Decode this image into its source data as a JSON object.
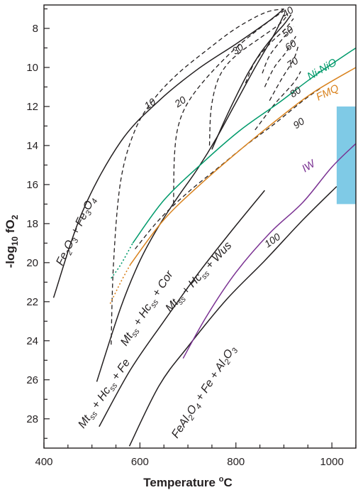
{
  "chart_data": {
    "type": "line",
    "xlabel_main": "Temperature ",
    "xlabel_sup": "o",
    "xlabel_tail": "C",
    "ylabel_pre": "-log",
    "ylabel_sub1": "10",
    "ylabel_mid": " fO",
    "ylabel_sub2": "2",
    "xlim": [
      400,
      1050
    ],
    "ylim": [
      29.5,
      6.8
    ],
    "x_ticks": [
      "400",
      "600",
      "800",
      "1000"
    ],
    "x_tick_values": [
      400,
      600,
      800,
      1000
    ],
    "y_ticks": [
      "8",
      "10",
      "12",
      "14",
      "16",
      "18",
      "20",
      "22",
      "24",
      "26",
      "28"
    ],
    "y_tick_values": [
      8,
      10,
      12,
      14,
      16,
      18,
      20,
      22,
      24,
      26,
      28
    ],
    "colors": {
      "ink": "#231f20",
      "nnoColor": "#009a6b",
      "fmqColor": "#d9821d",
      "iwColor": "#7a3192",
      "boxColor": "#7fcae6"
    },
    "labels": {
      "fe2o3": [
        "Fe",
        "2",
        "O",
        "3",
        " + Fe",
        "3",
        "O",
        "4"
      ],
      "mtHcFe": [
        "Mt",
        "ss",
        " + Hc",
        "ss",
        " + Fe"
      ],
      "mtHcCor": [
        "Mt",
        "ss",
        " + Hc",
        "ss",
        " + Cor"
      ],
      "mtHcWus": [
        "Mt",
        "ss",
        " + Hc",
        "ss",
        " + Wus"
      ],
      "feal": [
        "FeAl",
        "2",
        "O",
        "4",
        " + Fe + Al",
        "2",
        "O",
        "3"
      ],
      "nno": "Ni-NiO",
      "fmq": "FMQ",
      "iw": "IW"
    },
    "solid_series": [
      {
        "key": "fe2o3",
        "color": "ink",
        "x": [
          420,
          480,
          560,
          640,
          720,
          800,
          870,
          900
        ],
        "y": [
          21.8,
          17.4,
          13.8,
          11.7,
          10.1,
          8.8,
          7.6,
          7.0
        ]
      },
      {
        "key": "mtHcFe",
        "color": "ink",
        "x": [
          515,
          580,
          650,
          720,
          790,
          860
        ],
        "y": [
          28.4,
          25.5,
          23.0,
          20.6,
          18.4,
          16.3
        ]
      },
      {
        "key": "mtHcCor",
        "color": "ink",
        "x": [
          510,
          560,
          600,
          640,
          680,
          720,
          760,
          800,
          840,
          880,
          900
        ],
        "y": [
          26.1,
          22.3,
          19.9,
          18.1,
          16.6,
          15.2,
          13.6,
          11.8,
          10.0,
          8.3,
          7.3
        ]
      },
      {
        "key": "mtHcWus",
        "color": "ink",
        "x": [
          750,
          775,
          800,
          825,
          850,
          875,
          900,
          915
        ],
        "y": [
          14.2,
          12.8,
          11.5,
          10.3,
          9.3,
          8.5,
          7.8,
          7.3
        ]
      },
      {
        "key": "feal",
        "color": "ink",
        "x": [
          578,
          640,
          700,
          780,
          860,
          940,
          1010
        ],
        "y": [
          29.4,
          26.3,
          24.3,
          21.9,
          19.9,
          17.8,
          16.1
        ]
      },
      {
        "key": "nno",
        "color": "nnoColor",
        "x": [
          585,
          650,
          730,
          810,
          890,
          960,
          1050
        ],
        "y": [
          19.0,
          16.8,
          14.9,
          13.2,
          11.8,
          10.5,
          9.0
        ]
      },
      {
        "key": "fmq",
        "color": "fmqColor",
        "x": [
          580,
          650,
          730,
          810,
          890,
          960,
          1050
        ],
        "y": [
          20.1,
          17.8,
          15.9,
          14.2,
          12.6,
          11.3,
          10.0
        ]
      },
      {
        "key": "iw",
        "color": "iwColor",
        "x": [
          690,
          740,
          800,
          870,
          940,
          1000,
          1050
        ],
        "y": [
          24.9,
          22.7,
          20.5,
          18.5,
          16.9,
          15.1,
          13.9
        ]
      }
    ],
    "dotted_series": [
      {
        "key": "nno-extrapolated",
        "color": "nnoColor",
        "x": [
          540,
          560,
          585
        ],
        "y": [
          20.8,
          20.1,
          19.0
        ]
      },
      {
        "key": "fmq-extrapolated",
        "color": "fmqColor",
        "x": [
          538,
          560,
          580
        ],
        "y": [
          22.1,
          21.0,
          20.1
        ]
      }
    ],
    "contours": [
      {
        "label": "10",
        "x": [
          540,
          545,
          560,
          590,
          630,
          680,
          740,
          800,
          860,
          900
        ],
        "y": [
          24.2,
          20.0,
          15.8,
          13.2,
          11.6,
          10.3,
          9.1,
          8.0,
          7.2,
          7.0
        ]
      },
      {
        "label": "20",
        "x": [
          670,
          672,
          680,
          700,
          740,
          800,
          860,
          900
        ],
        "y": [
          17.0,
          14.5,
          13.0,
          11.8,
          10.5,
          9.0,
          7.8,
          7.1
        ]
      },
      {
        "label": "30",
        "x": [
          745,
          748,
          760,
          780,
          810,
          850,
          890,
          905
        ],
        "y": [
          14.0,
          12.2,
          10.8,
          9.9,
          9.2,
          8.5,
          7.8,
          7.4
        ]
      },
      {
        "label": "40",
        "x": [
          820,
          840,
          870,
          900,
          920
        ],
        "y": [
          10.8,
          9.7,
          8.8,
          8.1,
          7.5
        ]
      },
      {
        "label": "50",
        "x": [
          855,
          870,
          895,
          920
        ],
        "y": [
          10.3,
          9.4,
          8.6,
          7.9
        ]
      },
      {
        "label": "60",
        "x": [
          860,
          880,
          905,
          925
        ],
        "y": [
          11.0,
          10.0,
          9.2,
          8.4
        ]
      },
      {
        "label": "70",
        "x": [
          870,
          895,
          920,
          930
        ],
        "y": [
          11.7,
          10.6,
          9.6,
          8.9
        ]
      },
      {
        "label": "80",
        "x": [
          840,
          880,
          920,
          935
        ],
        "y": [
          13.2,
          11.9,
          10.8,
          10.2
        ]
      },
      {
        "label": "90",
        "x": [
          590,
          640,
          700,
          760,
          820,
          880,
          940,
          980
        ],
        "y": [
          19.3,
          17.8,
          16.4,
          15.2,
          14.0,
          12.9,
          11.7,
          11.0
        ]
      }
    ],
    "contour_label_positions": [
      {
        "label": "10",
        "x": 625,
        "y": 12.0
      },
      {
        "label": "20",
        "x": 688,
        "y": 11.9
      },
      {
        "label": "30",
        "x": 808,
        "y": 9.2
      },
      {
        "label": "40",
        "x": 912,
        "y": 7.3
      },
      {
        "label": "50",
        "x": 912,
        "y": 8.3
      },
      {
        "label": "60",
        "x": 918,
        "y": 9.0
      },
      {
        "label": "70",
        "x": 922,
        "y": 9.9
      },
      {
        "label": "80",
        "x": 928,
        "y": 11.4
      },
      {
        "label": "90",
        "x": 935,
        "y": 13.0
      },
      {
        "label": "100",
        "x": 880,
        "y": 19.0
      }
    ],
    "shaded_region": {
      "x": [
        1010,
        1050
      ],
      "y": [
        12.0,
        17.0
      ]
    }
  }
}
